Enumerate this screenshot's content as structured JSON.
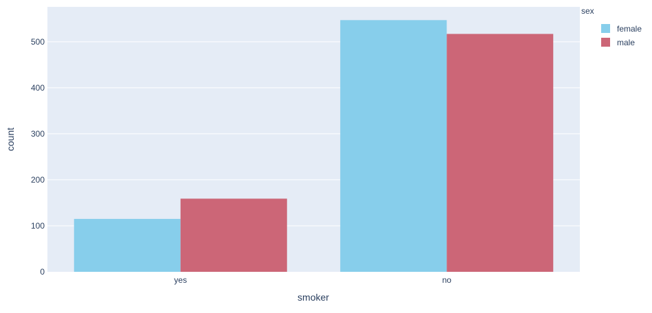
{
  "chart_data": {
    "type": "bar",
    "barmode": "group",
    "categories": [
      "yes",
      "no"
    ],
    "series": [
      {
        "name": "female",
        "values": [
          115,
          547
        ]
      },
      {
        "name": "male",
        "values": [
          159,
          517
        ]
      }
    ],
    "xlabel": "smoker",
    "ylabel": "count",
    "yticks": [
      0,
      100,
      200,
      300,
      400,
      500
    ],
    "ylim": [
      0,
      575.8
    ],
    "grid": true,
    "legend": {
      "title": "sex",
      "placement": "top-right"
    },
    "colors": {
      "female": "#87CEEB",
      "male": "#CC6677",
      "plot_background": "#E5ECF6",
      "gridline": "#FFFFFF",
      "text": "#2A3F5F"
    }
  }
}
